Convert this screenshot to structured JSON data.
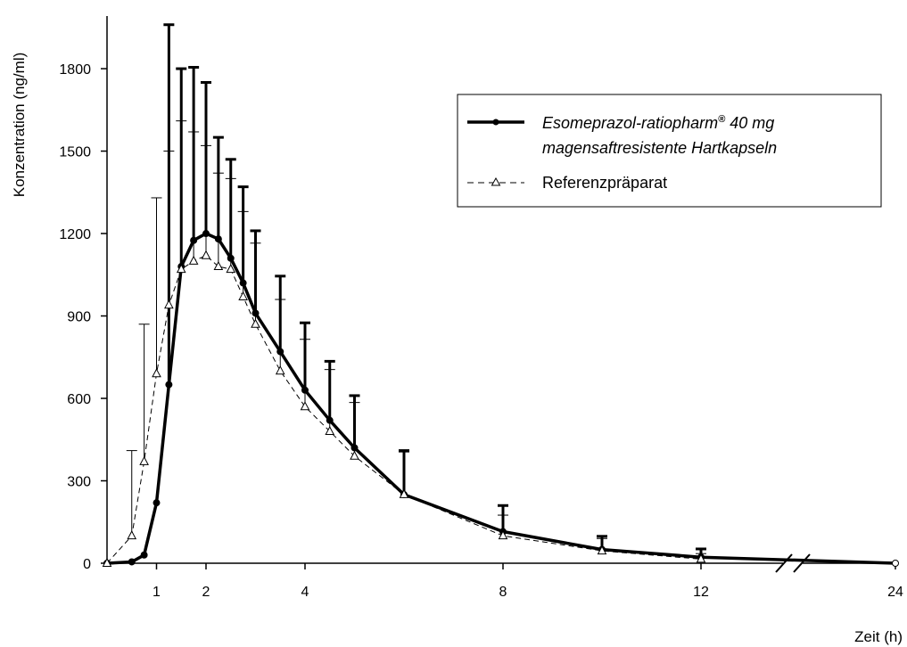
{
  "chart_data": {
    "type": "line",
    "xlabel": "Zeit (h)",
    "ylabel": "Konzentration (ng/ml)",
    "ylim": [
      0,
      1950
    ],
    "yticks": [
      0,
      300,
      600,
      900,
      1200,
      1500,
      1800
    ],
    "xticks": [
      1,
      2,
      4,
      8,
      12,
      24
    ],
    "x_axis_break": "between 12 and 24",
    "grid": false,
    "legend_position": "top-right",
    "series": [
      {
        "name_line1": "Esomeprazol-ratiopharm",
        "name_sup": "®",
        "name_line1_suffix": " 40 mg",
        "name_line2": "magensaftresistente Hartkapseln",
        "marker": "filled-circle",
        "line_style": "solid-thick",
        "color": "#000000",
        "x": [
          0,
          0.5,
          0.75,
          1,
          1.25,
          1.5,
          1.75,
          2,
          2.25,
          2.5,
          2.75,
          3,
          3.5,
          4,
          4.5,
          5,
          6,
          8,
          10,
          12,
          24
        ],
        "y": [
          0,
          5,
          30,
          220,
          650,
          1080,
          1175,
          1200,
          1180,
          1110,
          1020,
          910,
          770,
          630,
          520,
          420,
          250,
          115,
          50,
          22,
          0
        ],
        "error": [
          null,
          null,
          null,
          null,
          1310,
          720,
          630,
          550,
          370,
          360,
          350,
          300,
          275,
          245,
          215,
          190,
          160,
          95,
          48,
          30,
          null
        ]
      },
      {
        "name": "Referenzpräparat",
        "marker": "open-triangle",
        "line_style": "dashed-thin",
        "color": "#000000",
        "x": [
          0,
          0.5,
          0.75,
          1,
          1.25,
          1.5,
          1.75,
          2,
          2.25,
          2.5,
          2.75,
          3,
          3.5,
          4,
          4.5,
          5,
          6,
          8,
          10,
          12
        ],
        "y": [
          0,
          100,
          370,
          690,
          940,
          1070,
          1100,
          1120,
          1080,
          1070,
          970,
          870,
          700,
          570,
          480,
          390,
          250,
          100,
          45,
          15
        ],
        "error": [
          null,
          310,
          500,
          640,
          560,
          540,
          470,
          400,
          340,
          330,
          310,
          295,
          260,
          245,
          225,
          195,
          155,
          75,
          45,
          20
        ]
      }
    ]
  }
}
